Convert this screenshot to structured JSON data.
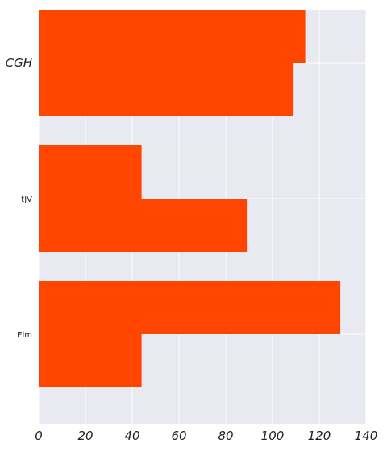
{
  "chart_data": {
    "type": "bar",
    "orientation": "horizontal",
    "categories": [
      "CGH",
      "tJV",
      "Elm"
    ],
    "series": [
      {
        "values": [
          114,
          44,
          129
        ]
      },
      {
        "values": [
          109,
          89,
          44
        ]
      }
    ],
    "xlim": [
      0,
      140
    ],
    "xticks": [
      "0",
      "20",
      "40",
      "60",
      "80",
      "100",
      "120",
      "140"
    ],
    "grid": true,
    "colors": {
      "bar": "#ff4500",
      "background": "#e9e9f1",
      "grid": "#ffffff"
    }
  }
}
